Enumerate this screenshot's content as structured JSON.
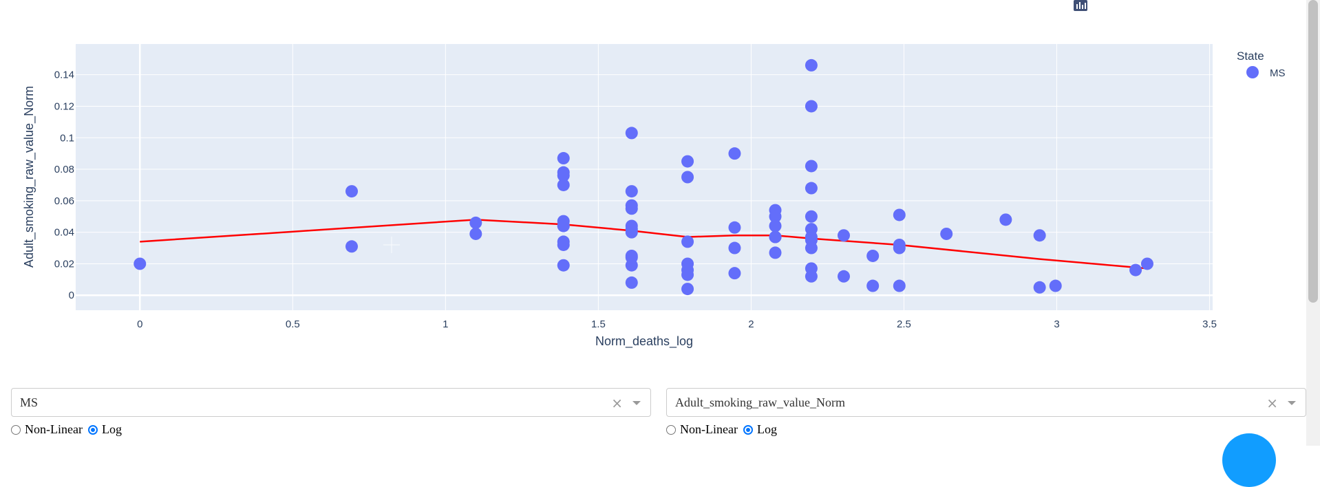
{
  "chart_data": {
    "type": "scatter",
    "xlabel": "Norm_deaths_log",
    "ylabel": "Adult_smoking_raw_value_Norm",
    "xlim": [
      -0.21,
      3.51
    ],
    "ylim": [
      -0.0095,
      0.1595
    ],
    "x_ticks": [
      0,
      0.5,
      1,
      1.5,
      2,
      2.5,
      3,
      3.5
    ],
    "x_tick_labels": [
      "0",
      "0.5",
      "1",
      "1.5",
      "2",
      "2.5",
      "3",
      "3.5"
    ],
    "y_ticks": [
      0,
      0.02,
      0.04,
      0.06,
      0.08,
      0.1,
      0.12,
      0.14
    ],
    "y_tick_labels": [
      "0",
      "0.02",
      "0.04",
      "0.06",
      "0.08",
      "0.1",
      "0.12",
      "0.14"
    ],
    "grid": true,
    "legend": {
      "title": "State",
      "placement": "top-right"
    },
    "series": [
      {
        "name": "MS",
        "color": "#636efa",
        "mode": "markers",
        "x": [
          0,
          0.693,
          0.693,
          1.099,
          1.099,
          1.386,
          1.386,
          1.386,
          1.386,
          1.386,
          1.386,
          1.386,
          1.386,
          1.386,
          1.386,
          1.609,
          1.609,
          1.609,
          1.609,
          1.609,
          1.609,
          1.609,
          1.609,
          1.609,
          1.609,
          1.609,
          1.792,
          1.792,
          1.792,
          1.792,
          1.792,
          1.792,
          1.792,
          1.946,
          1.946,
          1.946,
          1.946,
          2.079,
          2.079,
          2.079,
          2.079,
          2.079,
          2.079,
          2.197,
          2.197,
          2.197,
          2.197,
          2.197,
          2.197,
          2.197,
          2.197,
          2.197,
          2.197,
          2.197,
          2.303,
          2.303,
          2.398,
          2.398,
          2.485,
          2.485,
          2.485,
          2.485,
          2.639,
          2.833,
          2.944,
          2.944,
          2.996,
          3.258,
          3.296
        ],
        "y": [
          0.02,
          0.066,
          0.031,
          0.046,
          0.039,
          0.087,
          0.078,
          0.076,
          0.07,
          0.047,
          0.044,
          0.034,
          0.032,
          0.019,
          0.044,
          0.103,
          0.066,
          0.057,
          0.055,
          0.044,
          0.042,
          0.04,
          0.025,
          0.024,
          0.019,
          0.008,
          0.085,
          0.075,
          0.034,
          0.02,
          0.016,
          0.013,
          0.004,
          0.09,
          0.043,
          0.03,
          0.014,
          0.054,
          0.05,
          0.044,
          0.037,
          0.027,
          0.037,
          0.146,
          0.12,
          0.082,
          0.068,
          0.05,
          0.042,
          0.037,
          0.035,
          0.03,
          0.017,
          0.012,
          0.038,
          0.012,
          0.025,
          0.006,
          0.051,
          0.032,
          0.03,
          0.006,
          0.039,
          0.048,
          0.038,
          0.005,
          0.006,
          0.016,
          0.02
        ]
      },
      {
        "color": "#ff0000",
        "mode": "lines",
        "x": [
          0,
          1.099,
          1.386,
          1.609,
          1.792,
          1.946,
          2.079,
          2.197,
          2.485,
          2.944,
          3.296
        ],
        "y": [
          0.034,
          0.048,
          0.045,
          0.041,
          0.037,
          0.038,
          0.038,
          0.036,
          0.032,
          0.023,
          0.017
        ]
      }
    ]
  },
  "modebar": {
    "icons": [
      "camera-icon",
      "zoom-icon",
      "pan-icon",
      "box-select-icon",
      "lasso-icon",
      "zoom-in-icon",
      "zoom-out-icon",
      "autoscale-icon",
      "reset-axes-icon",
      "plotly-logo-icon"
    ]
  },
  "controls": {
    "left": {
      "select_value": "MS",
      "clear_glyph": "×",
      "radio_nonlinear": "Non-Linear",
      "radio_log": "Log",
      "selected": "Log"
    },
    "right": {
      "select_value": "Adult_smoking_raw_value_Norm",
      "clear_glyph": "×",
      "radio_nonlinear": "Non-Linear",
      "radio_log": "Log",
      "selected": "Log"
    }
  },
  "colors": {
    "plot_bg": "#e5ecf6",
    "accent": "#119dff",
    "marker": "#636efa",
    "trend": "#ff0000"
  }
}
